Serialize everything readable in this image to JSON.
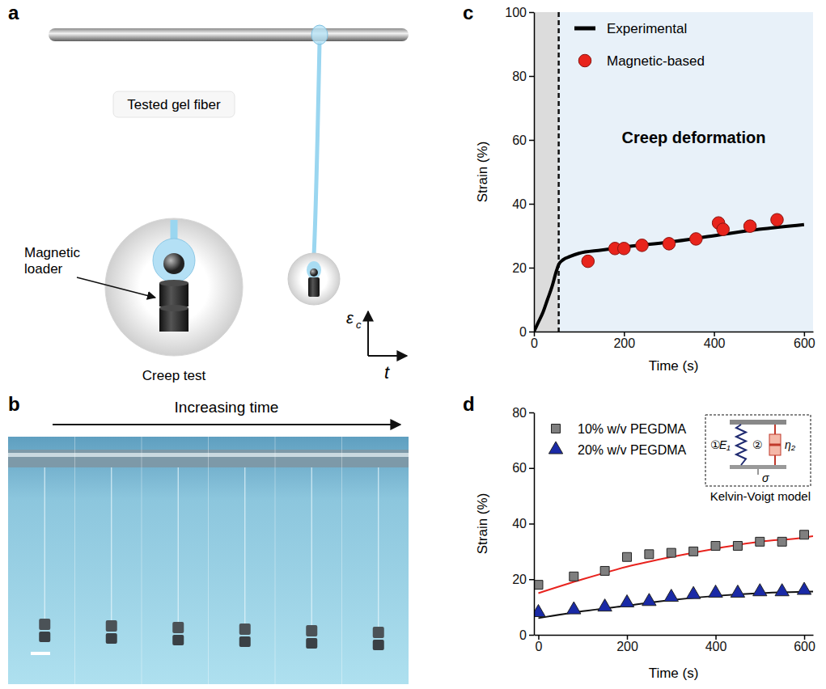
{
  "chart_data": [
    {
      "panel_label": "c",
      "type": "line",
      "x_label": "Time (s)",
      "y_label": "Strain (%)",
      "xlim": [
        0,
        620
      ],
      "ylim": [
        0,
        100
      ],
      "xticks": [
        0,
        200,
        400,
        600
      ],
      "yticks": [
        0,
        20,
        40,
        60,
        80,
        100
      ],
      "shaded_region": [
        0,
        55
      ],
      "annotation": "Creep deformation",
      "legend": "top-left",
      "series": [
        {
          "name": "Experimental",
          "type": "line",
          "color": "#000000",
          "x": [
            0,
            10,
            20,
            30,
            40,
            50,
            55,
            65,
            80,
            100,
            150,
            200,
            300,
            400,
            500,
            600
          ],
          "values": [
            0,
            3,
            6,
            10,
            14,
            19,
            21,
            22.5,
            23.5,
            24.5,
            25.5,
            26.5,
            28,
            30,
            32,
            33.5
          ]
        },
        {
          "name": "Magnetic-based",
          "type": "scatter",
          "color": "#e8241c",
          "marker": "circle",
          "x": [
            120,
            180,
            200,
            240,
            300,
            360,
            410,
            420,
            480,
            540
          ],
          "values": [
            22,
            26,
            26,
            27,
            27.5,
            29,
            34,
            32,
            33,
            35
          ]
        }
      ]
    },
    {
      "panel_label": "d",
      "type": "scatter",
      "x_label": "Time (s)",
      "y_label": "Strain (%)",
      "xlim": [
        -10,
        620
      ],
      "ylim": [
        0,
        80
      ],
      "xticks": [
        0,
        200,
        400,
        600
      ],
      "yticks": [
        0,
        20,
        40,
        60,
        80
      ],
      "legend": "top-left",
      "inset": {
        "title": "Kelvin-Voigt model",
        "labels": [
          "①",
          "E₁",
          "②",
          "η₂",
          "σ"
        ]
      },
      "series": [
        {
          "name": "10% w/v PEGDMA",
          "color": "#7f7f7f",
          "marker": "square",
          "x": [
            0,
            80,
            150,
            200,
            250,
            300,
            350,
            400,
            450,
            500,
            550,
            600
          ],
          "values": [
            18,
            21,
            23,
            28,
            29,
            29.5,
            30,
            32,
            32,
            33.5,
            33.5,
            36
          ],
          "fit": {
            "color": "#e8231e",
            "x": [
              0,
              100,
              200,
              300,
              400,
              500,
              600,
              620
            ],
            "values": [
              15,
              20,
              24.5,
              28,
              31,
              33.5,
              35,
              35.5
            ]
          }
        },
        {
          "name": "20% w/v PEGDMA",
          "color": "#1a2aa6",
          "marker": "triangle",
          "x": [
            0,
            80,
            150,
            200,
            250,
            300,
            350,
            400,
            450,
            500,
            550,
            600
          ],
          "values": [
            8,
            9,
            10,
            11.5,
            12,
            13.5,
            14.5,
            15,
            15,
            15.5,
            15.5,
            16
          ],
          "fit": {
            "color": "#111111",
            "x": [
              0,
              100,
              200,
              300,
              400,
              500,
              600,
              620
            ],
            "values": [
              6,
              8.5,
              10.5,
              12.5,
              14,
              15,
              15.5,
              15.6
            ]
          }
        }
      ]
    }
  ],
  "panels": {
    "a": {
      "label": "a",
      "texts": [
        "Tested gel fiber",
        "Magnetic loader",
        "Creep test"
      ],
      "axes": {
        "y_symbol": "ε",
        "y_subscript": "c",
        "x_symbol": "t"
      }
    },
    "b": {
      "label": "b",
      "arrow_text": "Increasing time"
    }
  }
}
